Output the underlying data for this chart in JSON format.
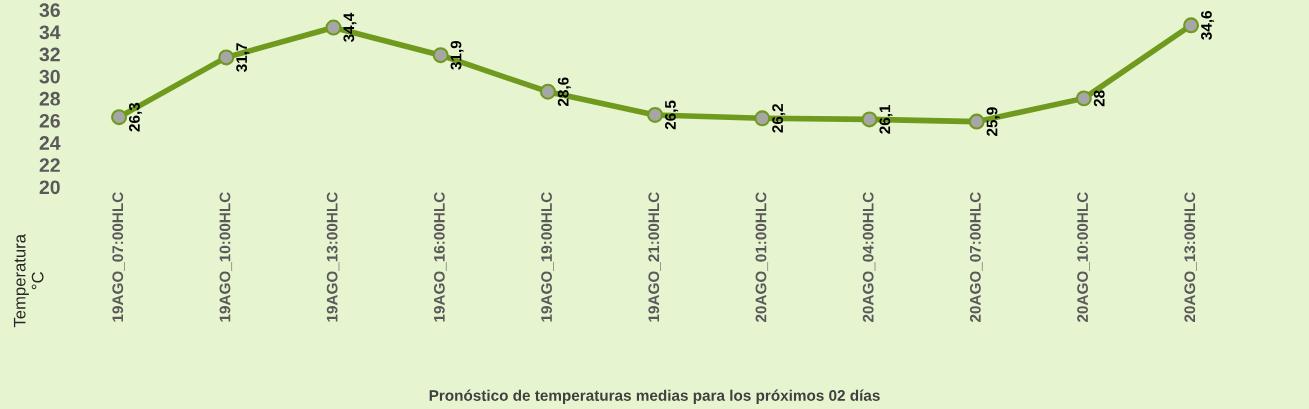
{
  "chart_data": {
    "type": "line",
    "title": "Pronóstico de temperaturas medias para los próximos 02 días",
    "ylabel": "Temperatura\n°C",
    "categories": [
      "19AGO_07:00HLC",
      "19AGO_10:00HLC",
      "19AGO_13:00HLC",
      "19AGO_16:00HLC",
      "19AGO_19:00HLC",
      "19AGO_21:00HLC",
      "20AGO_01:00HLC",
      "20AGO_04:00HLC",
      "20AGO_07:00HLC",
      "20AGO_10:00HLC",
      "20AGO_13:00HLC"
    ],
    "series": [
      {
        "color": "#6f9a1e",
        "values": [
          26.3,
          31.7,
          34.4,
          31.9,
          28.6,
          26.5,
          26.2,
          26.1,
          25.9,
          28,
          34.6
        ],
        "value_labels": [
          "26,3",
          "31,7",
          "34,4",
          "31,9",
          "28,6",
          "26,5",
          "26,2",
          "26,1",
          "25,9",
          "28",
          "34,6"
        ]
      }
    ],
    "ylim": [
      20,
      36
    ],
    "yticks": [
      20,
      22,
      24,
      26,
      28,
      30,
      32,
      34,
      36
    ],
    "marker": "circle",
    "line_style": "solid",
    "grid": false,
    "legend": false
  }
}
